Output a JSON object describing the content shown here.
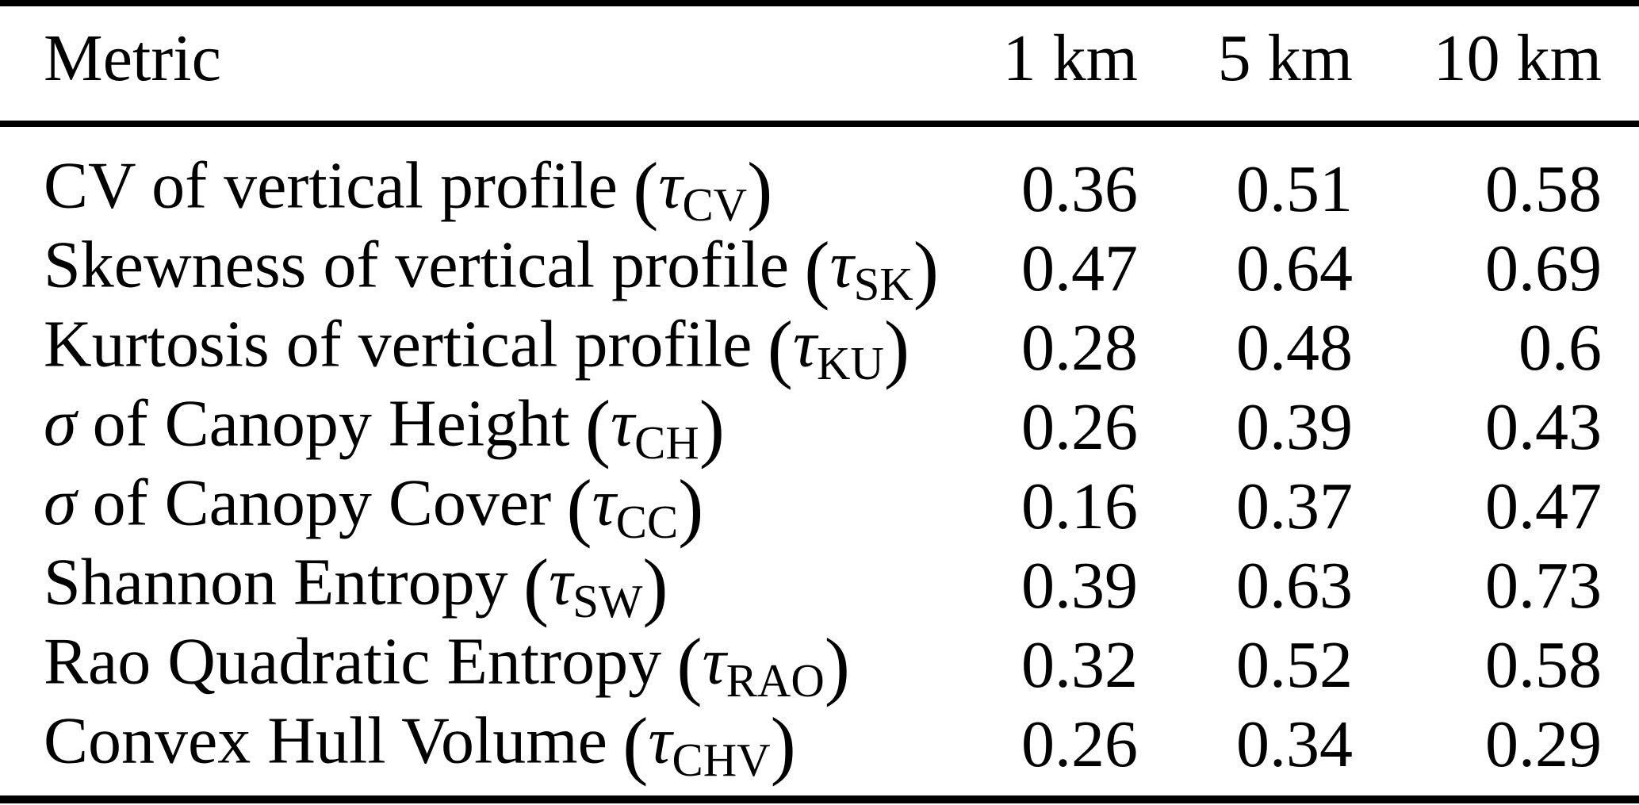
{
  "table": {
    "columns": [
      "Metric",
      "1 km",
      "5 km",
      "10 km"
    ],
    "open_paren": "(",
    "close_paren": ")",
    "rows": [
      {
        "sigma": "",
        "name": "CV of vertical profile",
        "tau": "τ",
        "sub": "CV",
        "values": [
          "0.36",
          "0.51",
          "0.58"
        ]
      },
      {
        "sigma": "",
        "name": "Skewness of vertical profile",
        "tau": "τ",
        "sub": "SK",
        "values": [
          "0.47",
          "0.64",
          "0.69"
        ]
      },
      {
        "sigma": "",
        "name": "Kurtosis of vertical profile",
        "tau": "τ",
        "sub": "KU",
        "values": [
          "0.28",
          "0.48",
          "0.6"
        ]
      },
      {
        "sigma": "σ",
        "name": "of Canopy Height",
        "tau": "τ",
        "sub": "CH",
        "values": [
          "0.26",
          "0.39",
          "0.43"
        ]
      },
      {
        "sigma": "σ",
        "name": "of Canopy Cover",
        "tau": "τ",
        "sub": "CC",
        "values": [
          "0.16",
          "0.37",
          "0.47"
        ]
      },
      {
        "sigma": "",
        "name": "Shannon Entropy",
        "tau": "τ",
        "sub": "SW",
        "values": [
          "0.39",
          "0.63",
          "0.73"
        ]
      },
      {
        "sigma": "",
        "name": "Rao Quadratic Entropy",
        "tau": "τ",
        "sub": "RAO",
        "values": [
          "0.32",
          "0.52",
          "0.58"
        ]
      },
      {
        "sigma": "",
        "name": "Convex Hull Volume",
        "tau": "τ",
        "sub": "CHV",
        "values": [
          "0.26",
          "0.34",
          "0.29"
        ]
      }
    ]
  },
  "chart_data": {
    "type": "table",
    "title": "",
    "columns": [
      "Metric",
      "1 km",
      "5 km",
      "10 km"
    ],
    "rows": [
      {
        "metric": "CV of vertical profile (τCV)",
        "1km": 0.36,
        "5km": 0.51,
        "10km": 0.58
      },
      {
        "metric": "Skewness of vertical profile (τSK)",
        "1km": 0.47,
        "5km": 0.64,
        "10km": 0.69
      },
      {
        "metric": "Kurtosis of vertical profile (τKU)",
        "1km": 0.28,
        "5km": 0.48,
        "10km": 0.6
      },
      {
        "metric": "σ of Canopy Height (τCH)",
        "1km": 0.26,
        "5km": 0.39,
        "10km": 0.43
      },
      {
        "metric": "σ of Canopy Cover (τCC)",
        "1km": 0.16,
        "5km": 0.37,
        "10km": 0.47
      },
      {
        "metric": "Shannon Entropy (τSW)",
        "1km": 0.39,
        "5km": 0.63,
        "10km": 0.73
      },
      {
        "metric": "Rao Quadratic Entropy (τRAO)",
        "1km": 0.32,
        "5km": 0.52,
        "10km": 0.58
      },
      {
        "metric": "Convex Hull Volume (τCHV)",
        "1km": 0.26,
        "5km": 0.34,
        "10km": 0.29
      }
    ]
  }
}
